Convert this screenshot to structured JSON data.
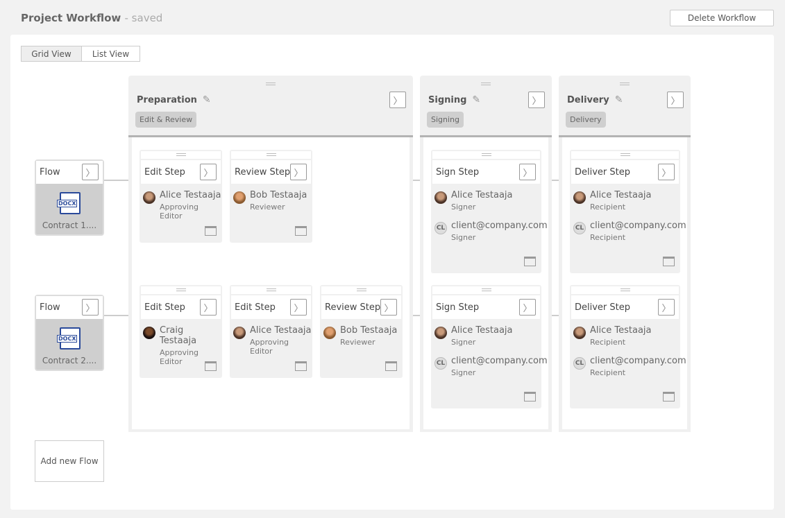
{
  "header": {
    "title": "Project Workflow",
    "status": "- saved",
    "delete_label": "Delete Workflow"
  },
  "view_tabs": [
    {
      "label": "Grid View",
      "selected": true
    },
    {
      "label": "List View",
      "selected": false
    }
  ],
  "phases": [
    {
      "name": "Preparation",
      "badge": "Edit & Review"
    },
    {
      "name": "Signing",
      "badge": "Signing"
    },
    {
      "name": "Delivery",
      "badge": "Delivery"
    }
  ],
  "flows": [
    {
      "label": "Flow",
      "file_type": "DOCX",
      "file_name": "Contract 1....",
      "steps": [
        {
          "phase": 0,
          "name": "Edit Step",
          "people": [
            {
              "name": "Alice Testaaja",
              "role": "Approving Editor",
              "avatar": "photo"
            }
          ]
        },
        {
          "phase": 0,
          "name": "Review Step",
          "people": [
            {
              "name": "Bob Testaaja",
              "role": "Reviewer",
              "avatar": "photo2"
            }
          ]
        },
        {
          "phase": 1,
          "name": "Sign Step",
          "people": [
            {
              "name": "Alice Testaaja",
              "role": "Signer",
              "avatar": "photo"
            },
            {
              "name": "client@company.com",
              "role": "Signer",
              "avatar": "init",
              "initials": "CL"
            }
          ]
        },
        {
          "phase": 2,
          "name": "Deliver Step",
          "people": [
            {
              "name": "Alice Testaaja",
              "role": "Recipient",
              "avatar": "photo"
            },
            {
              "name": "client@company.com",
              "role": "Recipient",
              "avatar": "init",
              "initials": "CL"
            }
          ]
        }
      ]
    },
    {
      "label": "Flow",
      "file_type": "DOCX",
      "file_name": "Contract 2....",
      "steps": [
        {
          "phase": 0,
          "name": "Edit Step",
          "people": [
            {
              "name": "Craig Testaaja",
              "role": "Approving Editor",
              "avatar": "photo3"
            }
          ]
        },
        {
          "phase": 0,
          "name": "Edit Step",
          "people": [
            {
              "name": "Alice Testaaja",
              "role": "Approving Editor",
              "avatar": "photo"
            }
          ]
        },
        {
          "phase": 0,
          "name": "Review Step",
          "people": [
            {
              "name": "Bob Testaaja",
              "role": "Reviewer",
              "avatar": "photo2"
            }
          ]
        },
        {
          "phase": 1,
          "name": "Sign Step",
          "people": [
            {
              "name": "Alice Testaaja",
              "role": "Signer",
              "avatar": "photo"
            },
            {
              "name": "client@company.com",
              "role": "Signer",
              "avatar": "init",
              "initials": "CL"
            }
          ]
        },
        {
          "phase": 2,
          "name": "Deliver Step",
          "people": [
            {
              "name": "Alice Testaaja",
              "role": "Recipient",
              "avatar": "photo"
            },
            {
              "name": "client@company.com",
              "role": "Recipient",
              "avatar": "init",
              "initials": "CL"
            }
          ]
        }
      ]
    }
  ],
  "add_flow_label": "Add new Flow",
  "icons": {
    "arrow": "chevron-right-icon",
    "edit": "pencil-icon",
    "calendar": "calendar-icon",
    "drag": "drag-handle-icon",
    "file": "docx-file-icon"
  }
}
